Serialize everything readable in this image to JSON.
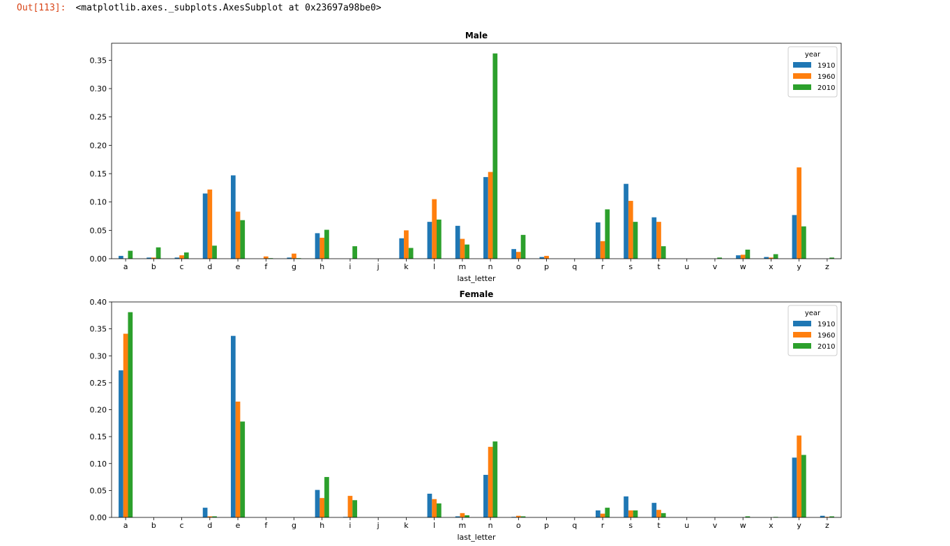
{
  "notebook": {
    "prompt": "Out[113]:",
    "repr": "<matplotlib.axes._subplots.AxesSubplot at 0x23697a98be0>"
  },
  "chart_data": [
    {
      "type": "bar",
      "title": "Male",
      "xlabel": "last_letter",
      "ylabel": "",
      "ylim": [
        0,
        0.38
      ],
      "yticks": [
        0.0,
        0.05,
        0.1,
        0.15,
        0.2,
        0.25,
        0.3,
        0.35
      ],
      "ytick_labels": [
        "0.00",
        "0.05",
        "0.10",
        "0.15",
        "0.20",
        "0.25",
        "0.30",
        "0.35"
      ],
      "grid": false,
      "legend": {
        "title": "year",
        "placement": "top-right"
      },
      "categories": [
        "a",
        "b",
        "c",
        "d",
        "e",
        "f",
        "g",
        "h",
        "i",
        "j",
        "k",
        "l",
        "m",
        "n",
        "o",
        "p",
        "q",
        "r",
        "s",
        "t",
        "u",
        "v",
        "w",
        "x",
        "y",
        "z"
      ],
      "series": [
        {
          "name": "1910",
          "color": "#1f77b4",
          "values": [
            0.005,
            0.002,
            0.002,
            0.115,
            0.147,
            0.0,
            0.002,
            0.045,
            0.0,
            0.0,
            0.036,
            0.065,
            0.058,
            0.144,
            0.017,
            0.003,
            0.0,
            0.064,
            0.132,
            0.073,
            0.0,
            0.0,
            0.006,
            0.003,
            0.077,
            0.0
          ]
        },
        {
          "name": "1960",
          "color": "#ff7f0e",
          "values": [
            0.0,
            0.002,
            0.006,
            0.122,
            0.083,
            0.004,
            0.009,
            0.037,
            0.0,
            0.0,
            0.05,
            0.105,
            0.035,
            0.153,
            0.012,
            0.005,
            0.0,
            0.031,
            0.102,
            0.065,
            0.0,
            0.0,
            0.007,
            0.002,
            0.161,
            0.0
          ]
        },
        {
          "name": "2010",
          "color": "#2ca02c",
          "values": [
            0.014,
            0.02,
            0.011,
            0.023,
            0.068,
            0.001,
            0.001,
            0.051,
            0.022,
            0.0,
            0.019,
            0.069,
            0.025,
            0.362,
            0.042,
            0.0,
            0.0,
            0.087,
            0.065,
            0.022,
            0.0,
            0.002,
            0.016,
            0.008,
            0.057,
            0.002
          ]
        }
      ]
    },
    {
      "type": "bar",
      "title": "Female",
      "xlabel": "last_letter",
      "ylabel": "",
      "ylim": [
        0,
        0.4
      ],
      "yticks": [
        0.0,
        0.05,
        0.1,
        0.15,
        0.2,
        0.25,
        0.3,
        0.35,
        0.4
      ],
      "ytick_labels": [
        "0.00",
        "0.05",
        "0.10",
        "0.15",
        "0.20",
        "0.25",
        "0.30",
        "0.35",
        "0.40"
      ],
      "grid": false,
      "legend": {
        "title": "year",
        "placement": "top-right"
      },
      "categories": [
        "a",
        "b",
        "c",
        "d",
        "e",
        "f",
        "g",
        "h",
        "i",
        "j",
        "k",
        "l",
        "m",
        "n",
        "o",
        "p",
        "q",
        "r",
        "s",
        "t",
        "u",
        "v",
        "w",
        "x",
        "y",
        "z"
      ],
      "series": [
        {
          "name": "1910",
          "color": "#1f77b4",
          "values": [
            0.273,
            0.0,
            0.0,
            0.018,
            0.337,
            0.0,
            0.0,
            0.051,
            0.001,
            0.0,
            0.0,
            0.044,
            0.002,
            0.079,
            0.001,
            0.0,
            0.0,
            0.013,
            0.039,
            0.027,
            0.0,
            0.0,
            0.0,
            0.0,
            0.111,
            0.003
          ]
        },
        {
          "name": "1960",
          "color": "#ff7f0e",
          "values": [
            0.341,
            0.0,
            0.0,
            0.002,
            0.215,
            0.0,
            0.0,
            0.036,
            0.04,
            0.0,
            0.0,
            0.034,
            0.008,
            0.131,
            0.003,
            0.0,
            0.0,
            0.007,
            0.013,
            0.014,
            0.0,
            0.0,
            0.0,
            0.0,
            0.152,
            0.001
          ]
        },
        {
          "name": "2010",
          "color": "#2ca02c",
          "values": [
            0.381,
            0.0,
            0.0,
            0.002,
            0.178,
            0.0,
            0.0,
            0.075,
            0.032,
            0.0,
            0.0,
            0.026,
            0.004,
            0.141,
            0.002,
            0.0,
            0.0,
            0.018,
            0.013,
            0.008,
            0.0,
            0.0,
            0.002,
            0.001,
            0.116,
            0.002
          ]
        }
      ]
    }
  ]
}
